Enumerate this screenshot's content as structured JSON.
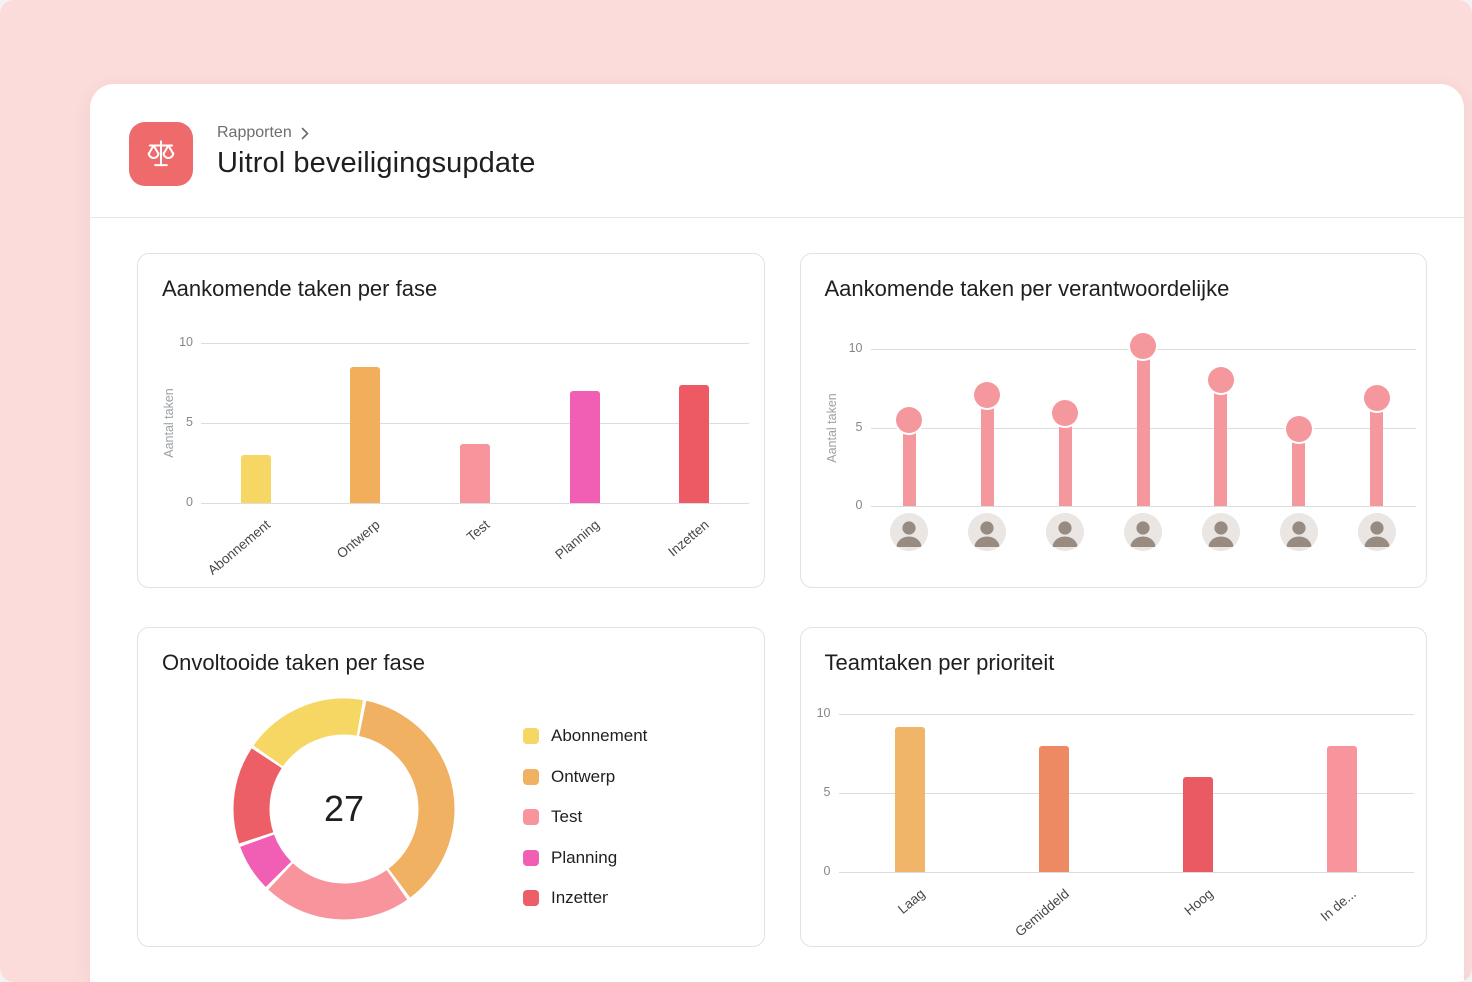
{
  "header": {
    "breadcrumb": "Rapporten",
    "title": "Uitrol beveiligingsupdate",
    "icon": "balance-scale-icon",
    "icon_bg": "#EF6B6B"
  },
  "theme": {
    "page_bg": "#FBDCDB",
    "panel_bg": "#FFFFFF",
    "card_border": "#E4E2E1",
    "gridline": "#DCDCDC",
    "tick_text": "#82888B",
    "category_text": "#44464A",
    "axis_label_text": "#9BA1A4",
    "title_text": "#1E1F21"
  },
  "chart_data": [
    {
      "id": "upcoming-tasks-by-phase",
      "type": "bar",
      "title": "Aankomende taken per fase",
      "ylabel": "Aantal taken",
      "yticks": [
        0,
        5,
        10
      ],
      "ylim": [
        0,
        10
      ],
      "grid": true,
      "categories": [
        "Abonnement",
        "Ontwerp",
        "Test",
        "Planning",
        "Inzetten"
      ],
      "values": [
        3,
        8.5,
        3.7,
        7,
        7.4
      ],
      "colors": [
        "#F6D764",
        "#F1AE5B",
        "#F8949B",
        "#F05FB4",
        "#ED5A63"
      ]
    },
    {
      "id": "upcoming-tasks-by-assignee",
      "type": "lollipop",
      "title": "Aankomende taken per verantwoordelijke",
      "ylabel": "Aantal taken",
      "yticks": [
        0,
        5,
        10
      ],
      "ylim": [
        0,
        10
      ],
      "grid": true,
      "categories": [
        "avatar-1",
        "avatar-2",
        "avatar-3",
        "avatar-4",
        "avatar-5",
        "avatar-6",
        "avatar-7"
      ],
      "values": [
        5.5,
        7.1,
        5.9,
        10.2,
        8,
        4.9,
        6.9
      ],
      "color": "#F5989D"
    },
    {
      "id": "incomplete-tasks-by-phase",
      "type": "donut",
      "title": "Onvoltooide taken per fase",
      "center_value": "27",
      "start_angle": -55,
      "legend_position": "right",
      "segments": [
        {
          "label": "Abonnement",
          "value": 5,
          "color": "#F6D764"
        },
        {
          "label": "Ontwerp",
          "value": 10,
          "color": "#F0B163"
        },
        {
          "label": "Test",
          "value": 6,
          "color": "#F8959C"
        },
        {
          "label": "Planning",
          "value": 2,
          "color": "#F05FB4"
        },
        {
          "label": "Inzetten",
          "value": 4,
          "color": "#EC5F66"
        }
      ]
    },
    {
      "id": "team-tasks-by-priority",
      "type": "bar",
      "title": "Teamtaken per prioriteit",
      "ylabel": "",
      "yticks": [
        0,
        5,
        10
      ],
      "ylim": [
        0,
        10
      ],
      "grid": true,
      "categories": [
        "Laag",
        "Gemiddeld",
        "Hoog",
        "In de..."
      ],
      "values": [
        9.2,
        8,
        6,
        8
      ],
      "colors": [
        "#F0B568",
        "#ED8A63",
        "#EA5A62",
        "#F8949C"
      ]
    }
  ]
}
